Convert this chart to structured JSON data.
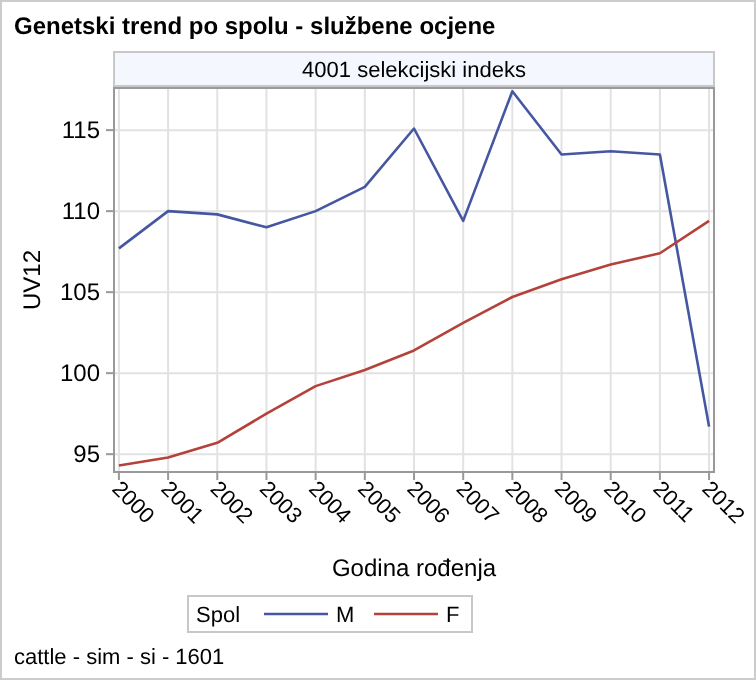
{
  "chart_data": {
    "type": "line",
    "title": "Genetski trend po spolu - službene ocjene",
    "subtitle": "4001 selekcijski indeks",
    "xlabel": "Godina rođenja",
    "ylabel": "UV12",
    "legend_title": "Spol",
    "annotations": [
      "cattle - sim - si - 1601"
    ],
    "x": [
      2000,
      2001,
      2002,
      2003,
      2004,
      2005,
      2006,
      2007,
      2008,
      2009,
      2010,
      2011,
      2012
    ],
    "series": [
      {
        "name": "M",
        "color": "#4557a0",
        "values": [
          107.7,
          110.0,
          109.8,
          109.0,
          110.0,
          111.5,
          115.1,
          109.4,
          117.4,
          113.5,
          113.7,
          113.5,
          96.7
        ]
      },
      {
        "name": "F",
        "color": "#b4423b",
        "values": [
          94.3,
          94.8,
          95.7,
          97.5,
          99.2,
          100.2,
          101.4,
          103.1,
          104.7,
          105.8,
          106.7,
          107.4,
          109.4
        ]
      }
    ],
    "xlim": [
      1999.9,
      2012.1
    ],
    "xticks": [
      2000,
      2001,
      2002,
      2003,
      2004,
      2005,
      2006,
      2007,
      2008,
      2009,
      2010,
      2011,
      2012
    ],
    "ylim": [
      93.9,
      117.6
    ],
    "yticks": [
      95,
      100,
      105,
      110,
      115
    ],
    "grid": true,
    "legend": "bottom",
    "line_style": "solid",
    "marker": "none"
  }
}
